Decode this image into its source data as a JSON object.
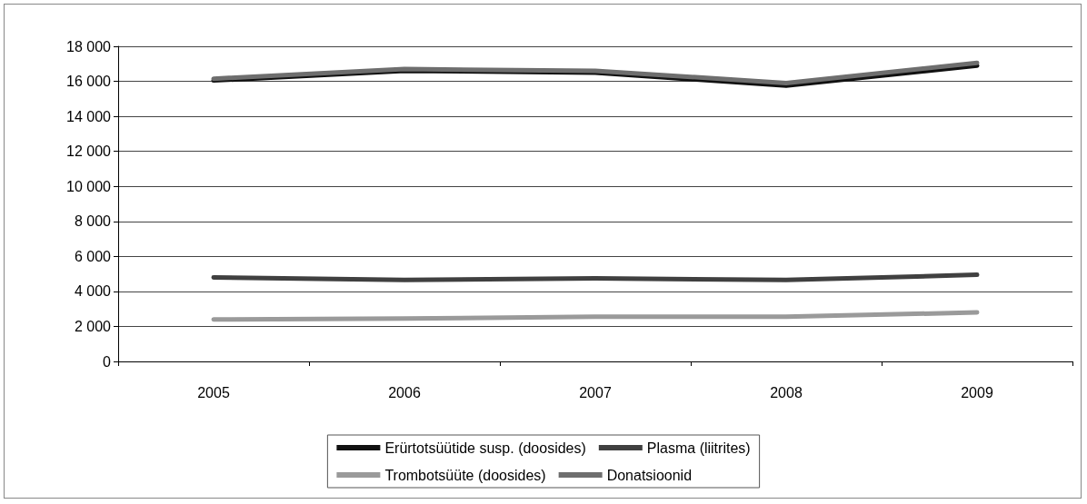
{
  "chart_data": {
    "type": "line",
    "categories": [
      "2005",
      "2006",
      "2007",
      "2008",
      "2009"
    ],
    "series": [
      {
        "name": "Erürtotsüütide susp. (doosides)",
        "color": "#111111",
        "values": [
          16050,
          16600,
          16500,
          15750,
          16900
        ]
      },
      {
        "name": "Plasma (liitrites)",
        "color": "#404040",
        "values": [
          4800,
          4650,
          4750,
          4650,
          4950
        ]
      },
      {
        "name": "Trombotsüüte (doosides)",
        "color": "#9a9a9a",
        "values": [
          2400,
          2450,
          2550,
          2550,
          2800
        ]
      },
      {
        "name": "Donatsioonid",
        "color": "#6e6e6e",
        "values": [
          16150,
          16700,
          16600,
          15900,
          17050
        ]
      }
    ],
    "ylim": [
      0,
      18000
    ],
    "yticks": [
      0,
      2000,
      4000,
      6000,
      8000,
      10000,
      12000,
      14000,
      16000,
      18000
    ],
    "grid": "y",
    "legend": "bottom",
    "marker": "none",
    "line_style": "solid"
  }
}
